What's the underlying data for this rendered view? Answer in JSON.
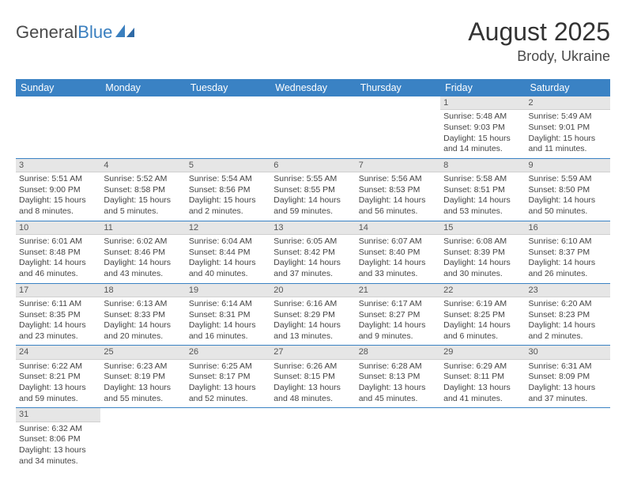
{
  "logo": {
    "text_a": "General",
    "text_b": "Blue"
  },
  "title": "August 2025",
  "location": "Brody, Ukraine",
  "colors": {
    "header_bg": "#3a82c4",
    "header_text": "#ffffff",
    "daynum_bg": "#e6e6e6",
    "row_divider": "#3a82c4",
    "body_text": "#444444",
    "title_text": "#333333",
    "logo_second": "#3a7fbf"
  },
  "day_headers": [
    "Sunday",
    "Monday",
    "Tuesday",
    "Wednesday",
    "Thursday",
    "Friday",
    "Saturday"
  ],
  "weeks": [
    [
      {
        "n": "",
        "lines": []
      },
      {
        "n": "",
        "lines": []
      },
      {
        "n": "",
        "lines": []
      },
      {
        "n": "",
        "lines": []
      },
      {
        "n": "",
        "lines": []
      },
      {
        "n": "1",
        "lines": [
          "Sunrise: 5:48 AM",
          "Sunset: 9:03 PM",
          "Daylight: 15 hours and 14 minutes."
        ]
      },
      {
        "n": "2",
        "lines": [
          "Sunrise: 5:49 AM",
          "Sunset: 9:01 PM",
          "Daylight: 15 hours and 11 minutes."
        ]
      }
    ],
    [
      {
        "n": "3",
        "lines": [
          "Sunrise: 5:51 AM",
          "Sunset: 9:00 PM",
          "Daylight: 15 hours and 8 minutes."
        ]
      },
      {
        "n": "4",
        "lines": [
          "Sunrise: 5:52 AM",
          "Sunset: 8:58 PM",
          "Daylight: 15 hours and 5 minutes."
        ]
      },
      {
        "n": "5",
        "lines": [
          "Sunrise: 5:54 AM",
          "Sunset: 8:56 PM",
          "Daylight: 15 hours and 2 minutes."
        ]
      },
      {
        "n": "6",
        "lines": [
          "Sunrise: 5:55 AM",
          "Sunset: 8:55 PM",
          "Daylight: 14 hours and 59 minutes."
        ]
      },
      {
        "n": "7",
        "lines": [
          "Sunrise: 5:56 AM",
          "Sunset: 8:53 PM",
          "Daylight: 14 hours and 56 minutes."
        ]
      },
      {
        "n": "8",
        "lines": [
          "Sunrise: 5:58 AM",
          "Sunset: 8:51 PM",
          "Daylight: 14 hours and 53 minutes."
        ]
      },
      {
        "n": "9",
        "lines": [
          "Sunrise: 5:59 AM",
          "Sunset: 8:50 PM",
          "Daylight: 14 hours and 50 minutes."
        ]
      }
    ],
    [
      {
        "n": "10",
        "lines": [
          "Sunrise: 6:01 AM",
          "Sunset: 8:48 PM",
          "Daylight: 14 hours and 46 minutes."
        ]
      },
      {
        "n": "11",
        "lines": [
          "Sunrise: 6:02 AM",
          "Sunset: 8:46 PM",
          "Daylight: 14 hours and 43 minutes."
        ]
      },
      {
        "n": "12",
        "lines": [
          "Sunrise: 6:04 AM",
          "Sunset: 8:44 PM",
          "Daylight: 14 hours and 40 minutes."
        ]
      },
      {
        "n": "13",
        "lines": [
          "Sunrise: 6:05 AM",
          "Sunset: 8:42 PM",
          "Daylight: 14 hours and 37 minutes."
        ]
      },
      {
        "n": "14",
        "lines": [
          "Sunrise: 6:07 AM",
          "Sunset: 8:40 PM",
          "Daylight: 14 hours and 33 minutes."
        ]
      },
      {
        "n": "15",
        "lines": [
          "Sunrise: 6:08 AM",
          "Sunset: 8:39 PM",
          "Daylight: 14 hours and 30 minutes."
        ]
      },
      {
        "n": "16",
        "lines": [
          "Sunrise: 6:10 AM",
          "Sunset: 8:37 PM",
          "Daylight: 14 hours and 26 minutes."
        ]
      }
    ],
    [
      {
        "n": "17",
        "lines": [
          "Sunrise: 6:11 AM",
          "Sunset: 8:35 PM",
          "Daylight: 14 hours and 23 minutes."
        ]
      },
      {
        "n": "18",
        "lines": [
          "Sunrise: 6:13 AM",
          "Sunset: 8:33 PM",
          "Daylight: 14 hours and 20 minutes."
        ]
      },
      {
        "n": "19",
        "lines": [
          "Sunrise: 6:14 AM",
          "Sunset: 8:31 PM",
          "Daylight: 14 hours and 16 minutes."
        ]
      },
      {
        "n": "20",
        "lines": [
          "Sunrise: 6:16 AM",
          "Sunset: 8:29 PM",
          "Daylight: 14 hours and 13 minutes."
        ]
      },
      {
        "n": "21",
        "lines": [
          "Sunrise: 6:17 AM",
          "Sunset: 8:27 PM",
          "Daylight: 14 hours and 9 minutes."
        ]
      },
      {
        "n": "22",
        "lines": [
          "Sunrise: 6:19 AM",
          "Sunset: 8:25 PM",
          "Daylight: 14 hours and 6 minutes."
        ]
      },
      {
        "n": "23",
        "lines": [
          "Sunrise: 6:20 AM",
          "Sunset: 8:23 PM",
          "Daylight: 14 hours and 2 minutes."
        ]
      }
    ],
    [
      {
        "n": "24",
        "lines": [
          "Sunrise: 6:22 AM",
          "Sunset: 8:21 PM",
          "Daylight: 13 hours and 59 minutes."
        ]
      },
      {
        "n": "25",
        "lines": [
          "Sunrise: 6:23 AM",
          "Sunset: 8:19 PM",
          "Daylight: 13 hours and 55 minutes."
        ]
      },
      {
        "n": "26",
        "lines": [
          "Sunrise: 6:25 AM",
          "Sunset: 8:17 PM",
          "Daylight: 13 hours and 52 minutes."
        ]
      },
      {
        "n": "27",
        "lines": [
          "Sunrise: 6:26 AM",
          "Sunset: 8:15 PM",
          "Daylight: 13 hours and 48 minutes."
        ]
      },
      {
        "n": "28",
        "lines": [
          "Sunrise: 6:28 AM",
          "Sunset: 8:13 PM",
          "Daylight: 13 hours and 45 minutes."
        ]
      },
      {
        "n": "29",
        "lines": [
          "Sunrise: 6:29 AM",
          "Sunset: 8:11 PM",
          "Daylight: 13 hours and 41 minutes."
        ]
      },
      {
        "n": "30",
        "lines": [
          "Sunrise: 6:31 AM",
          "Sunset: 8:09 PM",
          "Daylight: 13 hours and 37 minutes."
        ]
      }
    ],
    [
      {
        "n": "31",
        "lines": [
          "Sunrise: 6:32 AM",
          "Sunset: 8:06 PM",
          "Daylight: 13 hours and 34 minutes."
        ]
      },
      {
        "n": "",
        "lines": []
      },
      {
        "n": "",
        "lines": []
      },
      {
        "n": "",
        "lines": []
      },
      {
        "n": "",
        "lines": []
      },
      {
        "n": "",
        "lines": []
      },
      {
        "n": "",
        "lines": []
      }
    ]
  ]
}
